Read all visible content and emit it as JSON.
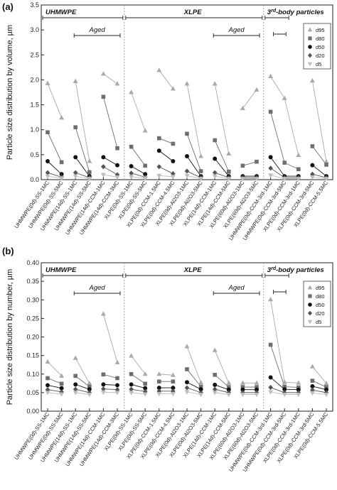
{
  "colors": {
    "d95": "#a9a9a9",
    "d80": "#6e6e6e",
    "d50": "#111111",
    "d20": "#555555",
    "d5": "#bdbdbd",
    "axis": "#222222",
    "separator": "#999999"
  },
  "chart_data": [
    {
      "type": "line",
      "panel_label": "(a)",
      "ylabel": "Particle size distribution by volume, µm",
      "ylim": [
        0,
        3.5
      ],
      "yticks": [
        "0.0",
        "0.5",
        "1.0",
        "1.5",
        "2.0",
        "2.5",
        "3.0",
        "3.5"
      ],
      "grid": false,
      "legend_position": "top-right",
      "categories": [
        "UHMWPE(0d)-SS-1MC",
        "UHMWPE(0d)-SS-5MC",
        "UHMWPE(14d)-SS-1MC",
        "UHMWPE(14d)-SS-5MC",
        "UHMWPE(14d)-CCM-1MC",
        "UHMWPE(14d)-CCM-3MC",
        "XLPE(0d)-SS-1MC",
        "XLPE(0d)-SS-5MC",
        "XLPE(0d)-CCM-1.5MC",
        "XLPE(0d)-CCM-4.5MC",
        "XLPE(0d)-Al2O3-1MC",
        "XLPE(0d)-Al2O3-5MC",
        "XLPE(14d)-CCM-1MC",
        "XLPE(14d)-CCM-5MC",
        "XLPE(60d)-Al2O3-1MC",
        "XLPE(60d)-Al2O3-5MC",
        "UHMWPE(0d)-CCM-3rd-1MC",
        "UHMWPE(0d)-CCM-3rd-5MC",
        "XLPE(0d)-CCM-3rd-1MC",
        "XLPE(0d)-CCM-3rd-5MC",
        "XLPE(0d)-CCM-5.5MC"
      ],
      "pairs": [
        [
          0,
          1
        ],
        [
          2,
          3
        ],
        [
          4,
          5
        ],
        [
          6,
          7
        ],
        [
          8,
          9
        ],
        [
          10,
          11
        ],
        [
          12,
          13
        ],
        [
          14,
          15
        ],
        [
          16,
          17,
          18
        ],
        [
          19,
          20
        ]
      ],
      "series": [
        {
          "name": "d95",
          "marker": "triangle-up",
          "values": [
            1.93,
            1.24,
            1.97,
            0.37,
            2.12,
            1.92,
            1.75,
            0.98,
            2.19,
            1.82,
            1.92,
            0.47,
            1.92,
            0.52,
            1.43,
            1.8,
            2.07,
            1.63,
            0.49,
            1.98,
            0.36
          ]
        },
        {
          "name": "d80",
          "marker": "square",
          "values": [
            0.95,
            0.35,
            1.05,
            0.15,
            1.66,
            0.63,
            0.66,
            0.28,
            0.83,
            0.72,
            0.92,
            0.17,
            0.79,
            0.16,
            0.28,
            0.36,
            1.36,
            0.34,
            0.21,
            0.67,
            0.3
          ]
        },
        {
          "name": "d50",
          "marker": "circle",
          "values": [
            0.37,
            0.11,
            0.45,
            0.07,
            0.45,
            0.29,
            0.27,
            0.11,
            0.58,
            0.37,
            0.47,
            0.07,
            0.42,
            0.07,
            0.07,
            0.07,
            0.45,
            0.07,
            0.07,
            0.29,
            0.07
          ]
        },
        {
          "name": "d20",
          "marker": "diamond",
          "values": [
            0.14,
            0.05,
            0.14,
            0.04,
            0.26,
            0.1,
            0.13,
            0.05,
            0.26,
            0.12,
            0.17,
            0.04,
            0.14,
            0.04,
            0.04,
            0.04,
            0.23,
            0.04,
            0.04,
            0.11,
            0.04
          ]
        },
        {
          "name": "d5",
          "marker": "triangle-down",
          "values": [
            0.07,
            0.03,
            0.07,
            0.02,
            0.1,
            0.05,
            0.06,
            0.03,
            0.08,
            0.06,
            0.08,
            0.02,
            0.07,
            0.02,
            0.02,
            0.02,
            0.09,
            0.02,
            0.02,
            0.05,
            0.02
          ]
        }
      ],
      "groups": [
        {
          "label": "UHMWPE",
          "start": 0,
          "end": 5
        },
        {
          "label": "XLPE",
          "start": 6,
          "end": 15
        },
        {
          "label": "3rd-body particles",
          "label_main": "3",
          "label_sup": "rd",
          "label_rest": "-body particles",
          "start": 16,
          "end": 20
        }
      ],
      "aged_spans": [
        {
          "label": "Aged",
          "start": 2,
          "end": 5
        },
        {
          "label": "Aged",
          "start": 12,
          "end": 15
        }
      ],
      "sub_spans": [
        {
          "start": 16,
          "end": 17
        },
        {
          "start": 19,
          "end": 20
        }
      ]
    },
    {
      "type": "line",
      "panel_label": "(b)",
      "ylabel": "Particle size distribution by number, µm",
      "ylim": [
        0.0,
        0.4
      ],
      "yticks": [
        "0.00",
        "0.05",
        "0.10",
        "0.15",
        "0.20",
        "0.25",
        "0.30",
        "0.35",
        "0.40"
      ],
      "grid": false,
      "legend_position": "top-right",
      "categories": [
        "UHMWPE(0d)-SS-1MC",
        "UHMWPE(0d)-SS-5MC",
        "UHMWPE(14d)-SS-1MC",
        "UHMWPE(14d)-SS-5MC",
        "UHMWPE(14d)-CCM-1MC",
        "UHMWPE(14d)-CCM-3MC",
        "XLPE(0d)-SS-1MC",
        "XLPE(0d)-SS-5MC",
        "XLPE(0d)-CCM-1.5MC",
        "XLPE(0d)-CCM-4.5MC",
        "XLPE(0d)-Al2O3-1MC",
        "XLPE(0d)-Al2O3-5MC",
        "XLPE(14d)-CCM-1MC",
        "XLPE(14d)-CCM-5MC",
        "XLPE(60d)-Al2O3-1MC",
        "XLPE(60d)-Al2O3-5MC",
        "UHMWPE(0d)-CCM-3rd-1MC",
        "UHMWPE(0d)-CCM-3rd-5MC",
        "XLPE(0d)-CCM-3rd-1MC",
        "XLPE(0d)-CCM-3rd-5MC",
        "XLPE(0d)-CCM-5.5MC"
      ],
      "pairs": [
        [
          0,
          1
        ],
        [
          2,
          3
        ],
        [
          4,
          5
        ],
        [
          6,
          7
        ],
        [
          8,
          9
        ],
        [
          10,
          11
        ],
        [
          12,
          13
        ],
        [
          14,
          15
        ],
        [
          16,
          17,
          18
        ],
        [
          19,
          20
        ]
      ],
      "series": [
        {
          "name": "d95",
          "marker": "triangle-up",
          "values": [
            0.133,
            0.095,
            0.143,
            0.075,
            0.262,
            0.131,
            0.149,
            0.1,
            0.1,
            0.097,
            0.174,
            0.077,
            0.164,
            0.076,
            0.076,
            0.076,
            0.301,
            0.078,
            0.076,
            0.12,
            0.075
          ]
        },
        {
          "name": "d80",
          "marker": "square",
          "values": [
            0.089,
            0.074,
            0.095,
            0.066,
            0.099,
            0.089,
            0.1,
            0.074,
            0.08,
            0.08,
            0.113,
            0.066,
            0.098,
            0.065,
            0.065,
            0.065,
            0.179,
            0.066,
            0.064,
            0.082,
            0.065
          ]
        },
        {
          "name": "d50",
          "marker": "circle",
          "values": [
            0.07,
            0.062,
            0.072,
            0.059,
            0.072,
            0.07,
            0.072,
            0.062,
            0.063,
            0.063,
            0.078,
            0.059,
            0.071,
            0.058,
            0.058,
            0.058,
            0.091,
            0.059,
            0.058,
            0.067,
            0.058
          ]
        },
        {
          "name": "d20",
          "marker": "diamond",
          "values": [
            0.058,
            0.052,
            0.059,
            0.05,
            0.06,
            0.058,
            0.059,
            0.053,
            0.054,
            0.054,
            0.063,
            0.05,
            0.059,
            0.05,
            0.05,
            0.05,
            0.064,
            0.05,
            0.05,
            0.057,
            0.05
          ]
        },
        {
          "name": "d5",
          "marker": "triangle-down",
          "values": [
            0.05,
            0.046,
            0.05,
            0.045,
            0.051,
            0.05,
            0.05,
            0.046,
            0.047,
            0.047,
            0.052,
            0.045,
            0.05,
            0.045,
            0.045,
            0.045,
            0.052,
            0.045,
            0.045,
            0.049,
            0.045
          ]
        }
      ],
      "groups": [
        {
          "label": "UHMWPE",
          "start": 0,
          "end": 5
        },
        {
          "label": "XLPE",
          "start": 6,
          "end": 15
        },
        {
          "label": "3rd-body particles",
          "label_main": "3",
          "label_sup": "rd",
          "label_rest": "-body particles",
          "start": 16,
          "end": 20
        }
      ],
      "aged_spans": [
        {
          "label": "Aged",
          "start": 2,
          "end": 5
        },
        {
          "label": "Aged",
          "start": 12,
          "end": 15
        }
      ],
      "sub_spans": [
        {
          "start": 16,
          "end": 17
        },
        {
          "start": 19,
          "end": 20
        }
      ]
    }
  ]
}
